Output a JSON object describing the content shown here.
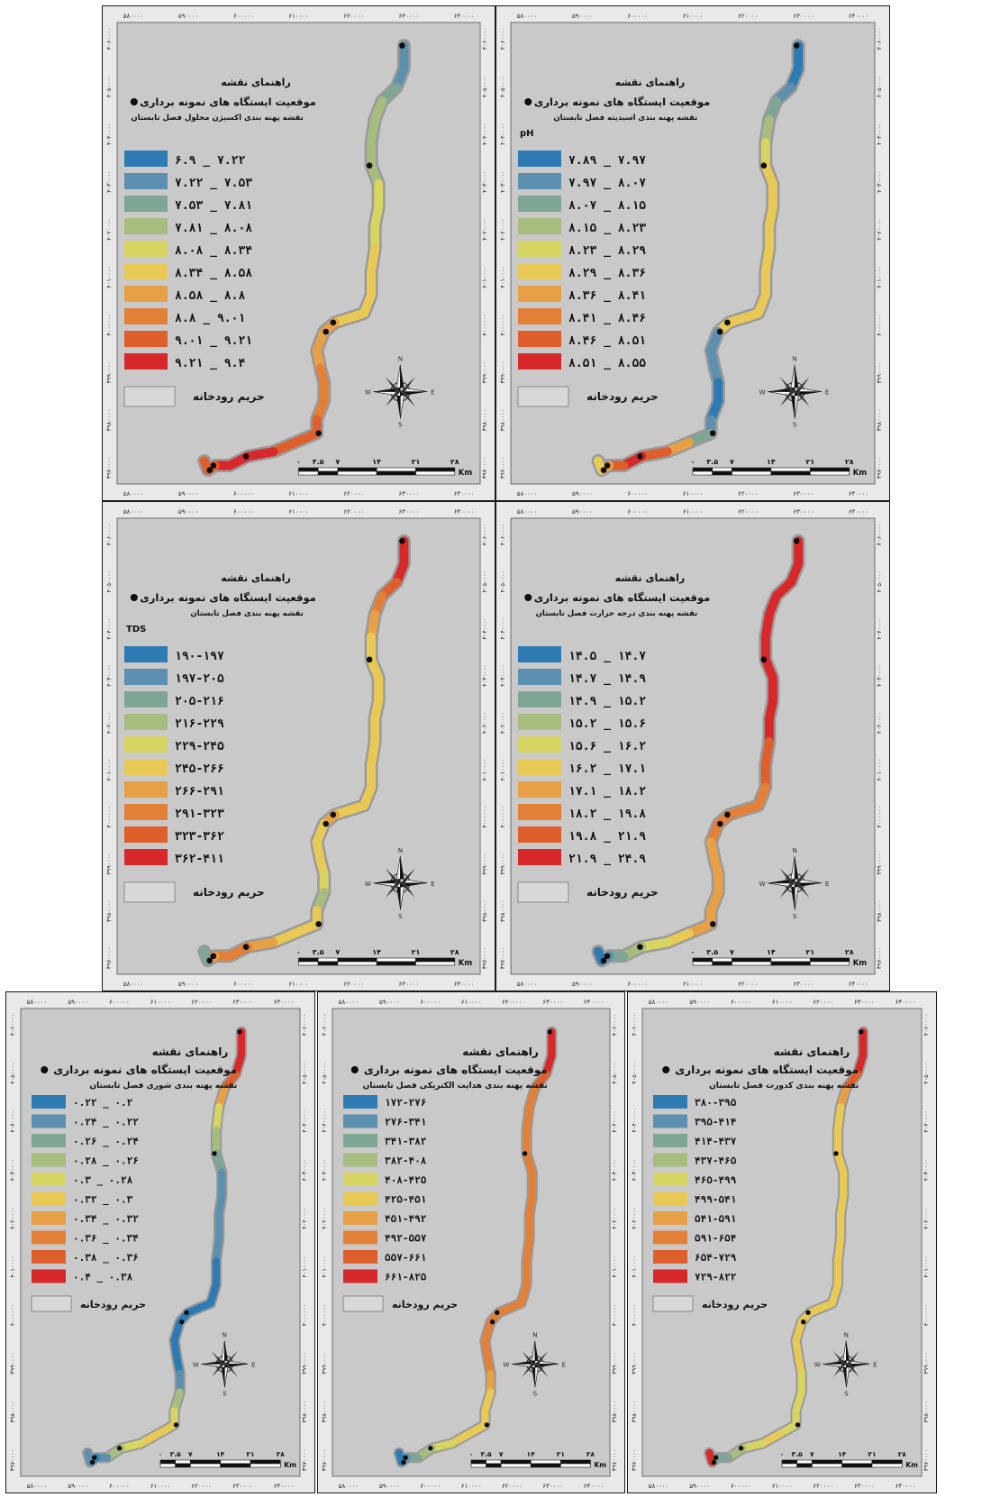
{
  "colors": [
    "#2d7bb2",
    "#5d8fae",
    "#7fa595",
    "#a7bd7f",
    "#d6d562",
    "#e8c955",
    "#e7a046",
    "#e28038",
    "#de5f2c",
    "#d7282a"
  ],
  "common": {
    "legend_title": "راهنمای نقشه",
    "stations_label": "موقعیت ایستگاه های نمونه برداری",
    "buffer_label": "حریم رودخانه",
    "scale_labels": [
      "۰",
      "۳.۵",
      "۷",
      "۱۴",
      "۲۱",
      "۲۸"
    ],
    "scale_unit": "Km",
    "compass": {
      "n": "N",
      "s": "S",
      "e": "E",
      "w": "W"
    },
    "x_ticks": [
      "۵۸۰۰۰۰",
      "۵۹۰۰۰۰",
      "۶۰۰۰۰۰",
      "۶۱۰۰۰۰",
      "۶۲۰۰۰۰",
      "۶۳۰۰۰۰",
      "۶۴۰۰۰۰"
    ],
    "y_ticks": [
      "۳۹۷۰۰۰۰",
      "۳۹۸۰۰۰۰",
      "۳۹۹۰۰۰۰",
      "۴۰۰۰۰۰۰",
      "۴۰۱۰۰۰۰",
      "۴۰۲۰۰۰۰",
      "۴۰۳۰۰۰۰",
      "۴۰۴۰۰۰۰",
      "۴۰۵۰۰۰۰",
      "۴۰۶۰۰۰۰"
    ]
  },
  "maps": [
    {
      "id": "do",
      "subtitle": "نقشه پهنه بندی اکسیژن محلول فصل تابستان",
      "unit_label": "",
      "legend": [
        "۶.۹  _  ۷.۲۲",
        "۷.۲۲  _  ۷.۵۳",
        "۷.۵۳  _  ۷.۸۱",
        "۷.۸۱  _  ۸.۰۸",
        "۸.۰۸  _  ۸.۳۴",
        "۸.۳۴  _  ۸.۵۸",
        "۸.۵۸  _  ۸.۸",
        "۸.۸  _  ۹.۰۱",
        "۹.۰۱  _  ۹.۲۱",
        "۹.۲۱  _  ۹.۴"
      ],
      "river_classes": [
        1,
        1,
        2,
        3,
        3,
        3,
        3,
        4,
        4,
        4,
        5,
        5,
        5,
        5,
        6,
        6,
        6,
        7,
        7,
        7,
        8,
        8,
        8,
        9,
        9,
        9,
        8,
        8,
        9
      ]
    },
    {
      "id": "ph",
      "subtitle": "نقشه پهنه بندی اسیدیته فصل تابستان",
      "unit_label": "pH",
      "legend": [
        "۷.۸۹  _  ۷.۹۷",
        "۷.۹۷  _  ۸.۰۷",
        "۸.۰۷  _  ۸.۱۵",
        "۸.۱۵  _  ۸.۲۳",
        "۸.۲۳  _  ۸.۲۹",
        "۸.۲۹  _  ۸.۳۶",
        "۸.۳۶  _  ۸.۴۱",
        "۸.۴۱  _  ۸.۴۶",
        "۸.۴۶  _  ۸.۵۱",
        "۸.۵۱  _  ۸.۵۵"
      ],
      "river_classes": [
        0,
        0,
        1,
        2,
        3,
        4,
        5,
        5,
        5,
        5,
        5,
        5,
        5,
        5,
        5,
        1,
        1,
        1,
        0,
        0,
        1,
        2,
        6,
        8,
        9,
        8,
        6,
        5,
        4
      ]
    },
    {
      "id": "tds",
      "subtitle": "نقشه پهنه بندی فصل تابستان",
      "unit_label": "TDS",
      "legend": [
        "۱۹۰-۱۹۷",
        "۱۹۷-۲۰۵",
        "۲۰۵-۲۱۶",
        "۲۱۶-۲۲۹",
        "۲۲۹-۲۴۵",
        "۲۴۵-۲۶۶",
        "۲۶۶-۲۹۱",
        "۲۹۱-۳۲۳",
        "۳۲۳-۳۶۲",
        "۳۶۲-۴۱۱"
      ],
      "river_classes": [
        9,
        9,
        8,
        7,
        6,
        5,
        5,
        5,
        5,
        5,
        5,
        5,
        5,
        5,
        6,
        5,
        5,
        5,
        4,
        3,
        5,
        5,
        5,
        6,
        7,
        7,
        6,
        2,
        1
      ]
    },
    {
      "id": "temp",
      "subtitle": "نقشه پهنه بندی درجه حرارت فصل تابستان",
      "unit_label": "",
      "legend": [
        "۱۴.۵  _  ۱۴.۷",
        "۱۴.۷  _  ۱۴.۹",
        "۱۴.۹  _  ۱۵.۲",
        "۱۵.۲  _  ۱۵.۶",
        "۱۵.۶  _  ۱۶.۲",
        "۱۶.۲  _  ۱۷.۱",
        "۱۷.۱  _  ۱۸.۲",
        "۱۸.۲  _  ۱۹.۸",
        "۱۹.۸  _  ۲۱.۹",
        "۲۱.۹  _  ۲۴.۹"
      ],
      "river_classes": [
        9,
        9,
        9,
        9,
        9,
        9,
        9,
        9,
        9,
        9,
        8,
        8,
        7,
        7,
        7,
        7,
        6,
        6,
        6,
        6,
        6,
        6,
        5,
        4,
        3,
        2,
        1,
        0,
        0
      ]
    },
    {
      "id": "sal",
      "subtitle": "نقشه پهنه بندی شوری فصل تابستان",
      "unit_label": "",
      "legend": [
        "۰.۲۲  _  ۰.۲",
        "۰.۲۴  _  ۰.۲۲",
        "۰.۲۶  _  ۰.۲۴",
        "۰.۲۸  _  ۰.۲۶",
        "۰.۳  _  ۰.۲۸",
        "۰.۳۲  _  ۰.۳",
        "۰.۳۴  _  ۰.۳۲",
        "۰.۳۶  _  ۰.۳۴",
        "۰.۳۸  _  ۰.۳۶",
        "۰.۴  _  ۰.۳۸"
      ],
      "river_classes": [
        9,
        9,
        8,
        6,
        4,
        3,
        2,
        1,
        1,
        1,
        1,
        0,
        0,
        0,
        0,
        0,
        0,
        0,
        1,
        3,
        4,
        5,
        5,
        4,
        3,
        1,
        0,
        1,
        9
      ]
    },
    {
      "id": "ec",
      "subtitle": "نقشه پهنه بندی هدایت الکتریکی فصل تابستان",
      "unit_label": "",
      "legend": [
        "۱۷۲-۲۷۶",
        "۲۷۶-۳۴۱",
        "۳۴۱-۳۸۲",
        "۳۸۲-۴۰۸",
        "۴۰۸-۴۲۵",
        "۴۲۵-۴۵۱",
        "۴۵۱-۴۹۲",
        "۴۹۲-۵۵۷",
        "۵۵۷-۶۶۱",
        "۶۶۱-۸۲۵"
      ],
      "river_classes": [
        9,
        9,
        8,
        7,
        7,
        7,
        7,
        7,
        7,
        7,
        7,
        7,
        7,
        7,
        7,
        7,
        7,
        7,
        6,
        5,
        5,
        5,
        5,
        4,
        3,
        2,
        1,
        0,
        0
      ]
    },
    {
      "id": "tur",
      "subtitle": "نقشه پهنه بندی کدورت فصل تابستان",
      "unit_label": "",
      "legend": [
        "۳۸۰-۳۹۵",
        "۳۹۵-۴۱۴",
        "۴۱۴-۴۳۷",
        "۴۳۷-۴۶۵",
        "۴۶۵-۴۹۹",
        "۴۹۹-۵۴۱",
        "۵۴۱-۵۹۱",
        "۵۹۱-۶۵۴",
        "۶۵۴-۷۲۹",
        "۷۲۹-۸۲۲"
      ],
      "river_classes": [
        9,
        9,
        8,
        6,
        5,
        5,
        5,
        5,
        5,
        5,
        5,
        5,
        5,
        5,
        5,
        5,
        5,
        5,
        4,
        4,
        4,
        4,
        5,
        4,
        3,
        2,
        2,
        9,
        1
      ]
    }
  ]
}
